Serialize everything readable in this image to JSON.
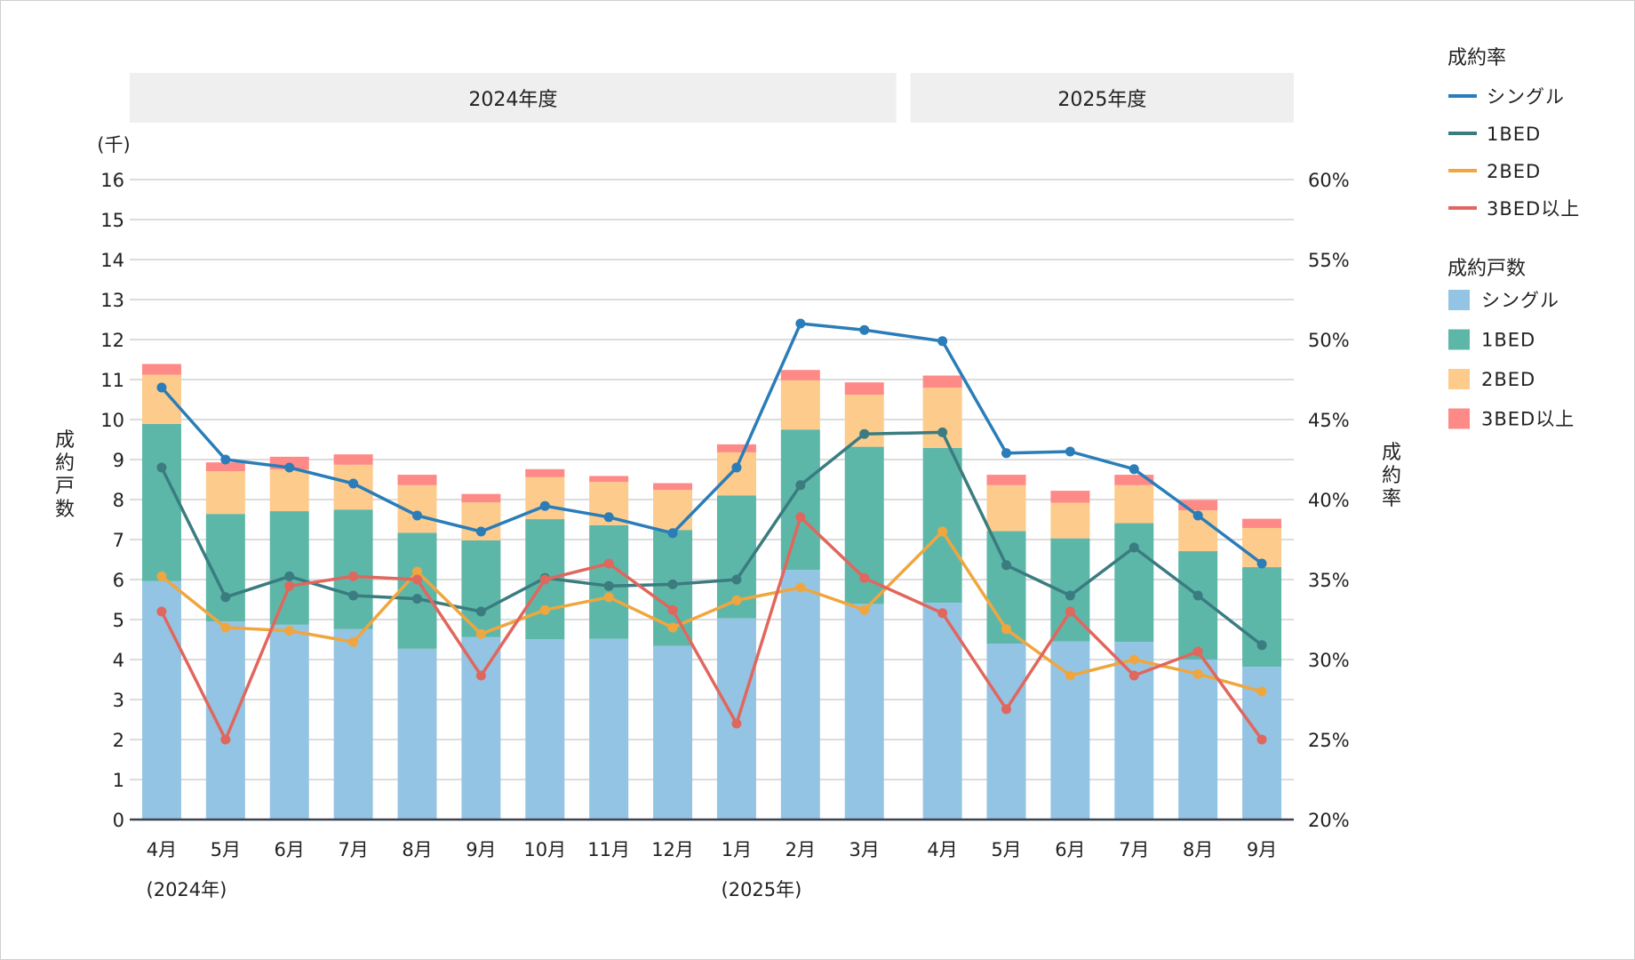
{
  "chart_data": {
    "type": "bar+line",
    "title": "",
    "unit_label": "(千)",
    "ylabel_left": "成約戸数",
    "ylabel_right": "成約率",
    "ylim_left": [
      0,
      16
    ],
    "yticks_left": [
      "0",
      "1",
      "2",
      "3",
      "4",
      "5",
      "6",
      "7",
      "8",
      "9",
      "10",
      "11",
      "12",
      "13",
      "14",
      "15",
      "16"
    ],
    "ylim_right": [
      20,
      60
    ],
    "yticks_right": [
      "20%",
      "25%",
      "30%",
      "35%",
      "40%",
      "45%",
      "50%",
      "55%",
      "60%"
    ],
    "grid": true,
    "fiscal_groups": [
      {
        "label": "2024年度",
        "count": 12
      },
      {
        "label": "2025年度",
        "count": 6
      }
    ],
    "categories": [
      "4月",
      "5月",
      "6月",
      "7月",
      "8月",
      "9月",
      "10月",
      "11月",
      "12月",
      "1月",
      "2月",
      "3月",
      "4月",
      "5月",
      "6月",
      "7月",
      "8月",
      "9月"
    ],
    "year_annotations": [
      {
        "index": 0,
        "label": "(2024年)"
      },
      {
        "index": 9,
        "label": "(2025年)"
      }
    ],
    "bar_series": [
      {
        "name": "シングル",
        "color": "#94c4e4",
        "values": [
          5.96,
          4.95,
          4.87,
          4.76,
          4.27,
          4.56,
          4.51,
          4.52,
          4.34,
          5.03,
          6.24,
          5.39,
          5.42,
          4.4,
          4.45,
          4.44,
          4.0,
          3.82
        ]
      },
      {
        "name": "1BED",
        "color": "#5db7a8",
        "values": [
          3.93,
          2.69,
          2.84,
          2.99,
          2.9,
          2.42,
          3.0,
          2.84,
          2.9,
          3.07,
          3.51,
          3.93,
          3.87,
          2.81,
          2.58,
          2.97,
          2.71,
          2.49
        ]
      },
      {
        "name": "2BED",
        "color": "#fdcb8c",
        "values": [
          1.23,
          1.07,
          1.04,
          1.12,
          1.19,
          0.95,
          1.05,
          1.08,
          1.0,
          1.08,
          1.23,
          1.3,
          1.51,
          1.15,
          0.89,
          0.95,
          1.02,
          0.98
        ]
      },
      {
        "name": "3BED以上",
        "color": "#fe8a87",
        "values": [
          0.27,
          0.22,
          0.32,
          0.26,
          0.26,
          0.21,
          0.2,
          0.15,
          0.17,
          0.2,
          0.26,
          0.31,
          0.3,
          0.26,
          0.3,
          0.26,
          0.26,
          0.23
        ]
      }
    ],
    "line_series": [
      {
        "name": "シングル",
        "color": "#2a7db8",
        "values": [
          47.0,
          42.5,
          42.0,
          41.0,
          39.0,
          38.0,
          39.6,
          38.9,
          37.9,
          42.0,
          51.0,
          50.6,
          49.9,
          42.9,
          43.0,
          41.9,
          39.0,
          36.0
        ]
      },
      {
        "name": "1BED",
        "color": "#3a7c80",
        "values": [
          42.0,
          33.9,
          35.2,
          34.0,
          33.8,
          33.0,
          35.1,
          34.6,
          34.7,
          35.0,
          40.9,
          44.1,
          44.2,
          35.9,
          34.0,
          37.0,
          34.0,
          30.9
        ]
      },
      {
        "name": "2BED",
        "color": "#f0a63e",
        "values": [
          35.2,
          32.0,
          31.8,
          31.1,
          35.5,
          31.6,
          33.1,
          33.9,
          32.0,
          33.7,
          34.5,
          33.1,
          38.0,
          31.9,
          29.0,
          30.0,
          29.1,
          28.0
        ]
      },
      {
        "name": "3BED以上",
        "color": "#e0675e",
        "values": [
          33.0,
          25.0,
          34.6,
          35.2,
          35.0,
          29.0,
          35.0,
          36.0,
          33.1,
          26.0,
          38.9,
          35.1,
          32.9,
          26.9,
          33.0,
          29.0,
          30.5,
          25.0
        ]
      }
    ],
    "legend_placement": "right",
    "legend": {
      "line_title": "成約率",
      "bar_title": "成約戸数"
    }
  }
}
